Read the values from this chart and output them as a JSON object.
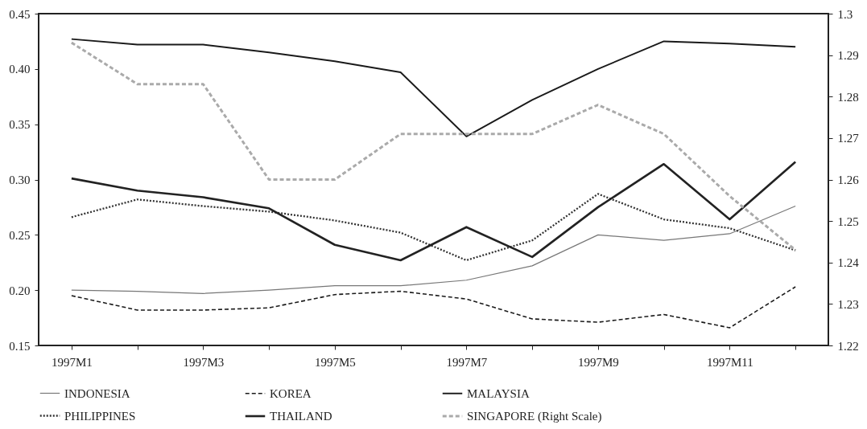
{
  "chart_data": {
    "type": "line",
    "categories": [
      "1997M1",
      null,
      "1997M3",
      null,
      "1997M5",
      null,
      "1997M7",
      null,
      "1997M9",
      null,
      "1997M11",
      null
    ],
    "series": [
      {
        "name": "INDONESIA",
        "color": "#777777",
        "line_style": "solid",
        "values": [
          0.2,
          0.199,
          0.197,
          0.2,
          0.204,
          0.204,
          0.209,
          0.222,
          0.25,
          0.245,
          0.251,
          0.276
        ]
      },
      {
        "name": "KOREA",
        "color": "#1a1a1a",
        "line_style": "dashed",
        "values": [
          0.195,
          0.182,
          0.182,
          0.184,
          0.196,
          0.199,
          0.192,
          0.174,
          0.171,
          0.178,
          0.166,
          0.203
        ]
      },
      {
        "name": "MALAYSIA",
        "color": "#1a1a1a",
        "line_style": "solid",
        "values": [
          0.427,
          0.422,
          0.422,
          0.415,
          0.407,
          0.397,
          0.339,
          0.372,
          0.4,
          0.425,
          0.423,
          0.42
        ]
      },
      {
        "name": "PHILIPPINES",
        "color": "#333333",
        "line_style": "dotted",
        "values": [
          0.266,
          0.282,
          0.276,
          0.271,
          0.263,
          0.252,
          0.227,
          0.245,
          0.287,
          0.264,
          0.256,
          0.236
        ]
      },
      {
        "name": "THAILAND",
        "color": "#222222",
        "line_style": "solid",
        "values": [
          0.301,
          0.29,
          0.284,
          0.274,
          0.241,
          0.227,
          0.257,
          0.23,
          0.275,
          0.314,
          0.264,
          0.316
        ]
      },
      {
        "name": "SINGAPORE (Right Scale)",
        "color": "#aaaaaa",
        "line_style": "dashed",
        "axis": "y2",
        "values": [
          1.293,
          1.283,
          1.283,
          1.26,
          1.26,
          1.271,
          1.271,
          1.271,
          1.278,
          1.271,
          1.256,
          1.243
        ]
      }
    ],
    "ylim": [
      0.15,
      0.45
    ],
    "yticks": [
      0.15,
      {
        "value": 0.2,
        "label": "0.20"
      },
      0.25,
      {
        "value": 0.3,
        "label": "0.30"
      },
      0.35,
      {
        "value": 0.4,
        "label": "0.40"
      },
      0.45
    ],
    "y2lim": [
      1.22,
      1.3
    ],
    "y2ticks": [
      1.22,
      1.23,
      1.24,
      1.25,
      1.26,
      1.27,
      1.28,
      1.29,
      {
        "value": 1.3,
        "label": "1.3"
      }
    ],
    "grid": false,
    "legend": "bottom"
  }
}
